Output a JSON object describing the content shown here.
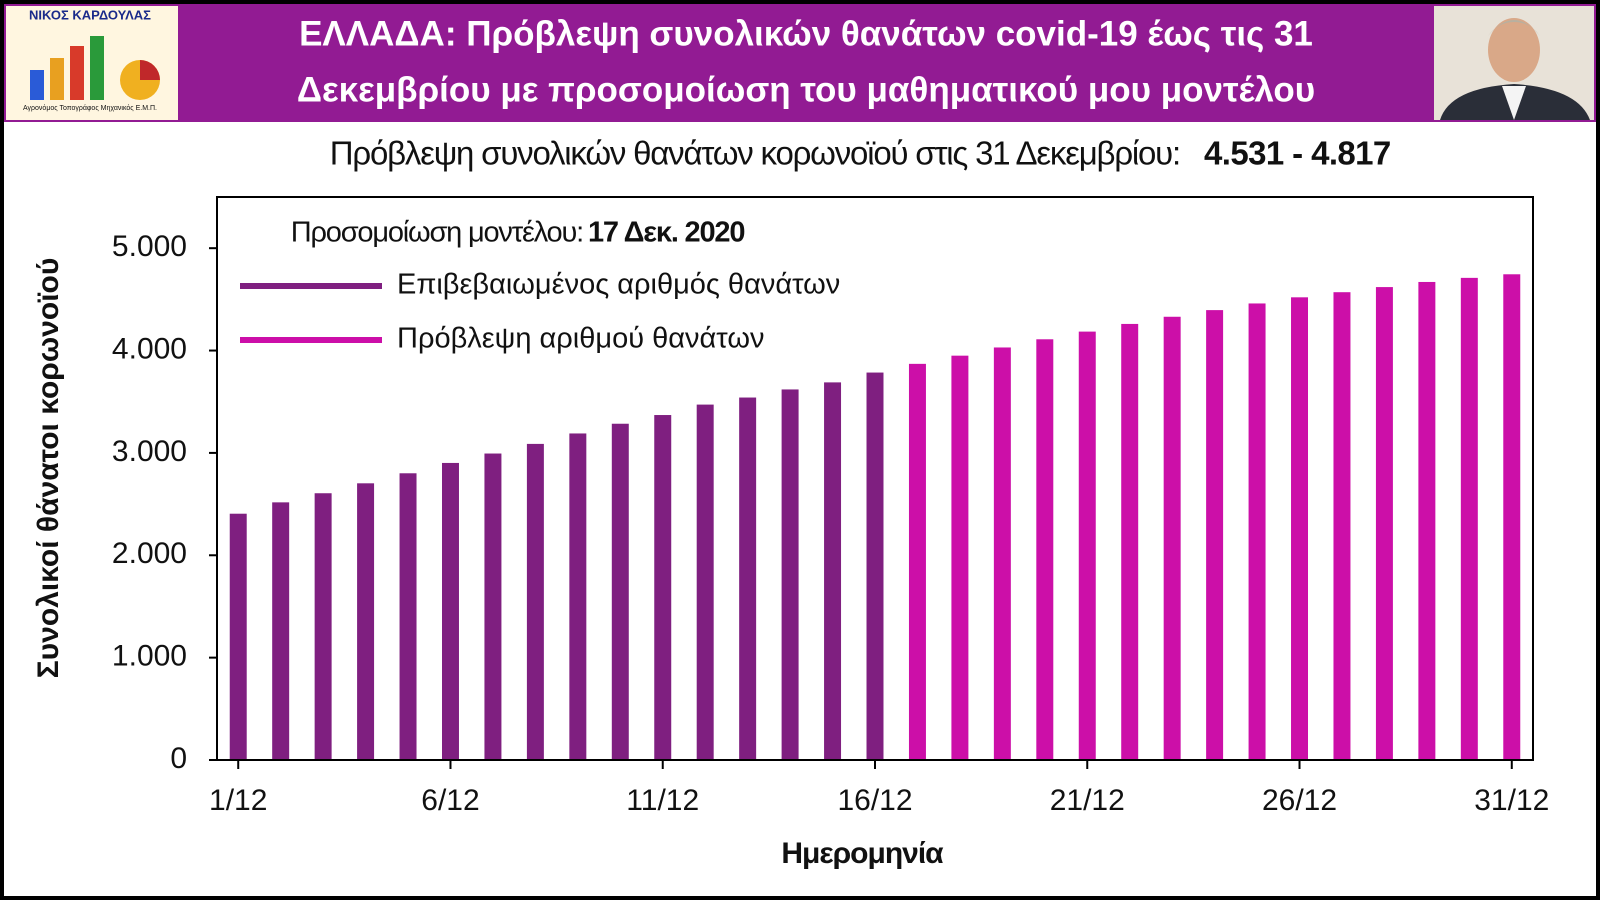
{
  "chart_data": {
    "type": "bar",
    "logo": {
      "name": "ΝΙΚΟΣ ΚΑΡΔΟΥΛΑΣ",
      "caption": "Αγρονόμος Τοπογράφος Μηχανικός Ε.Μ.Π."
    },
    "title": [
      "ΕΛΛΑΔΑ: Πρόβλεψη συνολικών θανάτων covid-19 έως τις 31",
      "Δεκεμβρίου με προσομοίωση του μαθηματικού μου μοντέλου"
    ],
    "subtitle": "Πρόβλεψη συνολικών θανάτων κορωνοϊού στις 31 Δεκεμβρίου:",
    "subtitle_range": "4.531 - 4.817",
    "annotation": {
      "text": "Προσομοίωση μοντέλου:",
      "date": "17 Δεκ. 2020"
    },
    "x_label": "Ημερομηνία",
    "y_label": "Συνολικοί θάνατοι κορωνοϊού",
    "categories": [
      "1/12",
      null,
      null,
      null,
      null,
      "6/12",
      null,
      null,
      null,
      null,
      "11/12",
      null,
      null,
      null,
      null,
      "16/12",
      null,
      null,
      null,
      null,
      "21/12",
      null,
      null,
      null,
      null,
      "26/12",
      null,
      null,
      null,
      null,
      "31/12"
    ],
    "series": [
      {
        "name": "Επιβεβαιωμένος αριθμός θανάτων",
        "color": "#7f1f80",
        "values": [
          2406,
          2517,
          2606,
          2703,
          2801,
          2902,
          2994,
          3088,
          3190,
          3285,
          3370,
          3472,
          3541,
          3620,
          3689,
          3785,
          null,
          null,
          null,
          null,
          null,
          null,
          null,
          null,
          null,
          null,
          null,
          null,
          null,
          null,
          null
        ]
      },
      {
        "name": "Πρόβλεψη αριθμού θανάτων",
        "color": "#cc0fa8",
        "values": [
          null,
          null,
          null,
          null,
          null,
          null,
          null,
          null,
          null,
          null,
          null,
          null,
          null,
          null,
          null,
          null,
          3870,
          3950,
          4030,
          4110,
          4185,
          4260,
          4330,
          4395,
          4460,
          4520,
          4570,
          4620,
          4670,
          4710,
          4745
        ]
      }
    ],
    "ylim": [
      0,
      5500
    ],
    "yticks": [
      0,
      {
        "value": 1000,
        "label": "1.000"
      },
      {
        "value": 2000,
        "label": "2.000"
      },
      {
        "value": 3000,
        "label": "3.000"
      },
      {
        "value": 4000,
        "label": "4.000"
      },
      {
        "value": 5000,
        "label": "5.000"
      }
    ],
    "header_color": "#921b93"
  }
}
